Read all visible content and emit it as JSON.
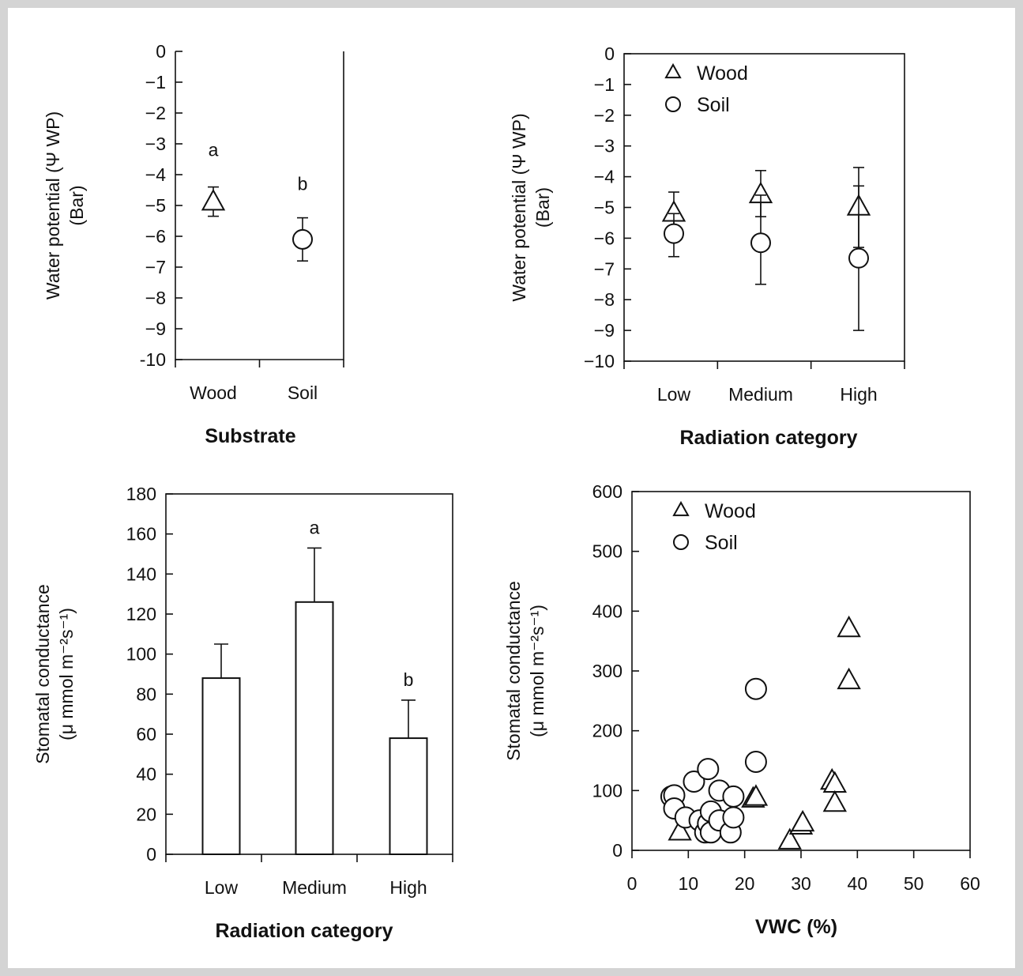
{
  "chart_data": [
    {
      "id": "p1",
      "type": "scatter",
      "xlabel": "Substrate",
      "ylabel": [
        "Water potential (Ψ WP)",
        "(Bar)"
      ],
      "ylim": [
        -10,
        0
      ],
      "yticks": [
        0,
        -1,
        -2,
        -3,
        -4,
        -5,
        -6,
        -7,
        -8,
        -9,
        -10
      ],
      "ytick_labels": [
        "0",
        "−1",
        "−2",
        "−3",
        "−4",
        "−5",
        "−6",
        "−7",
        "−8",
        "−9",
        "-10"
      ],
      "categories": [
        "Wood",
        "Soil"
      ],
      "series": [
        {
          "marker": "triangle",
          "points": [
            {
              "x": "Wood",
              "y": -4.9,
              "err_low": -5.35,
              "err_high": -4.4
            }
          ]
        },
        {
          "marker": "circle",
          "points": [
            {
              "x": "Soil",
              "y": -6.1,
              "err_low": -6.8,
              "err_high": -5.4
            }
          ]
        }
      ],
      "annotations": [
        {
          "x": "Wood",
          "y": -3.4,
          "text": "a"
        },
        {
          "x": "Soil",
          "y": -4.5,
          "text": "b"
        }
      ]
    },
    {
      "id": "p2",
      "type": "scatter",
      "xlabel": "Radiation category",
      "ylabel": [
        "Water potential (Ψ WP)",
        "(Bar)"
      ],
      "ylim": [
        -10,
        0
      ],
      "yticks": [
        0,
        -1,
        -2,
        -3,
        -4,
        -5,
        -6,
        -7,
        -8,
        -9,
        -10
      ],
      "ytick_labels": [
        "0",
        "−1",
        "−2",
        "−3",
        "−4",
        "−5",
        "−6",
        "−7",
        "−8",
        "−9",
        "−10"
      ],
      "categories": [
        "Low",
        "Medium",
        "High"
      ],
      "legend": {
        "position": "top-left",
        "entries": [
          {
            "marker": "triangle",
            "label": "Wood"
          },
          {
            "marker": "circle",
            "label": "Soil"
          }
        ]
      },
      "series": [
        {
          "marker": "triangle",
          "points": [
            {
              "x": "Low",
              "y": -5.2,
              "err_low": -5.7,
              "err_high": -4.5
            },
            {
              "x": "Medium",
              "y": -4.6,
              "err_low": -5.3,
              "err_high": -3.8
            },
            {
              "x": "High",
              "y": -5.0,
              "err_low": -6.3,
              "err_high": -3.7
            }
          ]
        },
        {
          "marker": "circle",
          "points": [
            {
              "x": "Low",
              "y": -5.85,
              "err_low": -6.6,
              "err_high": -5.2
            },
            {
              "x": "Medium",
              "y": -6.15,
              "err_low": -7.5,
              "err_high": -4.6
            },
            {
              "x": "High",
              "y": -6.65,
              "err_low": -9.0,
              "err_high": -4.3
            }
          ]
        }
      ]
    },
    {
      "id": "p3",
      "type": "bar",
      "xlabel": "Radiation category",
      "ylabel": [
        "Stomatal conductance",
        "(μ mmol m⁻²s⁻¹)"
      ],
      "ylim": [
        0,
        180
      ],
      "yticks": [
        0,
        20,
        40,
        60,
        80,
        100,
        120,
        140,
        160,
        180
      ],
      "categories": [
        "Low",
        "Medium",
        "High"
      ],
      "values": [
        88,
        126,
        58
      ],
      "errors": [
        17,
        27,
        19
      ],
      "annotations": [
        {
          "x": "Medium",
          "y": 160,
          "text": "a"
        },
        {
          "x": "High",
          "y": 84,
          "text": "b"
        }
      ]
    },
    {
      "id": "p4",
      "type": "scatter",
      "xlabel": "VWC  (%)",
      "ylabel": [
        "Stomatal conductance",
        "(μ mmol  m⁻²s⁻¹)"
      ],
      "xlim": [
        0,
        60
      ],
      "ylim": [
        0,
        600
      ],
      "xticks": [
        0,
        10,
        20,
        30,
        40,
        50,
        60
      ],
      "yticks": [
        0,
        100,
        200,
        300,
        400,
        500,
        600
      ],
      "legend": {
        "position": "top-left",
        "entries": [
          {
            "marker": "triangle",
            "label": "Wood"
          },
          {
            "marker": "circle",
            "label": "Soil"
          }
        ]
      },
      "series": [
        {
          "marker": "triangle",
          "points": [
            [
              8.5,
              30
            ],
            [
              21.5,
              85
            ],
            [
              22,
              88
            ],
            [
              28,
              15
            ],
            [
              30,
              40
            ],
            [
              30.3,
              45
            ],
            [
              35.5,
              115
            ],
            [
              36,
              110
            ],
            [
              36,
              78
            ],
            [
              38.5,
              370
            ],
            [
              38.5,
              283
            ]
          ]
        },
        {
          "marker": "circle",
          "points": [
            [
              7,
              90
            ],
            [
              7.5,
              92
            ],
            [
              7.5,
              70
            ],
            [
              9.5,
              55
            ],
            [
              11,
              115
            ],
            [
              12,
              50
            ],
            [
              13,
              30
            ],
            [
              13.5,
              45
            ],
            [
              13.5,
              136
            ],
            [
              14,
              30
            ],
            [
              14,
              65
            ],
            [
              15.5,
              100
            ],
            [
              15.5,
              50
            ],
            [
              17.5,
              30
            ],
            [
              18,
              90
            ],
            [
              18,
              55
            ],
            [
              22,
              270
            ],
            [
              22,
              148
            ]
          ]
        }
      ]
    }
  ]
}
